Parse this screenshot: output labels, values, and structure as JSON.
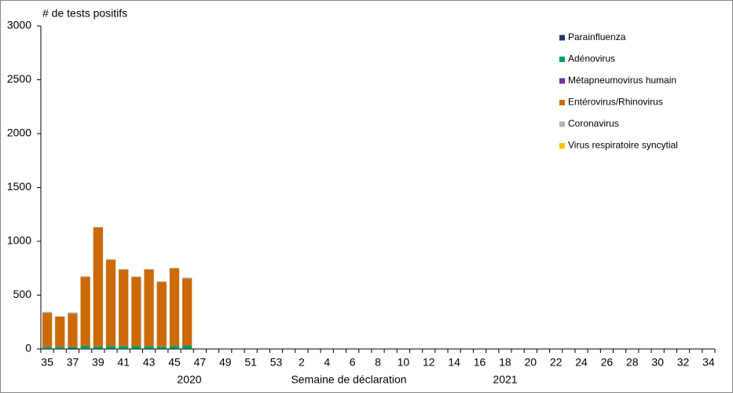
{
  "chart_data": {
    "type": "stacked_bar",
    "y_label": "# de tests positifs",
    "x_label": "Semaine de déclaration",
    "year_labels": [
      "2020",
      "2021"
    ],
    "categories": [
      "35",
      null,
      "37",
      null,
      "39",
      null,
      "41",
      null,
      "43",
      null,
      "45",
      null,
      "47",
      null,
      "49",
      null,
      "51",
      null,
      "53",
      null,
      "2",
      null,
      "4",
      null,
      "6",
      null,
      "8",
      null,
      "10",
      null,
      "12",
      null,
      "14",
      null,
      "16",
      null,
      "18",
      null,
      "20",
      null,
      "22",
      null,
      "24",
      null,
      "26",
      null,
      "28",
      null,
      "30",
      null,
      "32",
      null,
      "34"
    ],
    "series": [
      {
        "name": "Parainfluenza",
        "color": "#1f3864",
        "values": [
          5,
          5,
          10,
          5,
          3,
          3,
          3,
          3,
          3,
          3,
          3,
          3,
          null,
          null,
          null,
          null,
          null,
          null,
          null,
          null,
          null,
          null,
          null,
          null,
          null,
          null,
          null,
          null,
          null,
          null,
          null,
          null,
          null,
          null,
          null,
          null,
          null,
          null,
          null,
          null,
          null,
          null,
          null,
          null,
          null,
          null,
          null,
          null,
          null,
          null,
          null,
          null,
          null
        ]
      },
      {
        "name": "Adénovirus",
        "color": "#00a060",
        "values": [
          15,
          15,
          10,
          25,
          20,
          25,
          25,
          25,
          25,
          20,
          25,
          30,
          null,
          null,
          null,
          null,
          null,
          null,
          null,
          null,
          null,
          null,
          null,
          null,
          null,
          null,
          null,
          null,
          null,
          null,
          null,
          null,
          null,
          null,
          null,
          null,
          null,
          null,
          null,
          null,
          null,
          null,
          null,
          null,
          null,
          null,
          null,
          null,
          null,
          null,
          null,
          null,
          null
        ]
      },
      {
        "name": "Métapneumovirus humain",
        "color": "#7030a0",
        "values": [
          0,
          0,
          0,
          0,
          0,
          0,
          0,
          0,
          0,
          0,
          0,
          0,
          null,
          null,
          null,
          null,
          null,
          null,
          null,
          null,
          null,
          null,
          null,
          null,
          null,
          null,
          null,
          null,
          null,
          null,
          null,
          null,
          null,
          null,
          null,
          null,
          null,
          null,
          null,
          null,
          null,
          null,
          null,
          null,
          null,
          null,
          null,
          null,
          null,
          null,
          null,
          null,
          null
        ]
      },
      {
        "name": "Entérovirus/Rhinovirus",
        "color": "#cc6a0a",
        "values": [
          315,
          280,
          310,
          640,
          1105,
          800,
          710,
          640,
          710,
          600,
          720,
          620,
          null,
          null,
          null,
          null,
          null,
          null,
          null,
          null,
          null,
          null,
          null,
          null,
          null,
          null,
          null,
          null,
          null,
          null,
          null,
          null,
          null,
          null,
          null,
          null,
          null,
          null,
          null,
          null,
          null,
          null,
          null,
          null,
          null,
          null,
          null,
          null,
          null,
          null,
          null,
          null,
          null
        ]
      },
      {
        "name": "Coronavirus",
        "color": "#b4b4b4",
        "values": [
          10,
          5,
          10,
          5,
          5,
          5,
          5,
          5,
          5,
          5,
          5,
          10,
          null,
          null,
          null,
          null,
          null,
          null,
          null,
          null,
          null,
          null,
          null,
          null,
          null,
          null,
          null,
          null,
          null,
          null,
          null,
          null,
          null,
          null,
          null,
          null,
          null,
          null,
          null,
          null,
          null,
          null,
          null,
          null,
          null,
          null,
          null,
          null,
          null,
          null,
          null,
          null,
          null
        ]
      },
      {
        "name": "Virus respiratoire syncytial",
        "color": "#ffc000",
        "values": [
          0,
          0,
          0,
          0,
          0,
          0,
          0,
          0,
          0,
          0,
          0,
          0,
          null,
          null,
          null,
          null,
          null,
          null,
          null,
          null,
          null,
          null,
          null,
          null,
          null,
          null,
          null,
          null,
          null,
          null,
          null,
          null,
          null,
          null,
          null,
          null,
          null,
          null,
          null,
          null,
          null,
          null,
          null,
          null,
          null,
          null,
          null,
          null,
          null,
          null,
          null,
          null,
          null
        ]
      }
    ],
    "ylim": [
      0,
      3000
    ],
    "yticks": [
      0,
      500,
      1000,
      1500,
      2000,
      2500,
      3000
    ],
    "legend": "top-right"
  }
}
